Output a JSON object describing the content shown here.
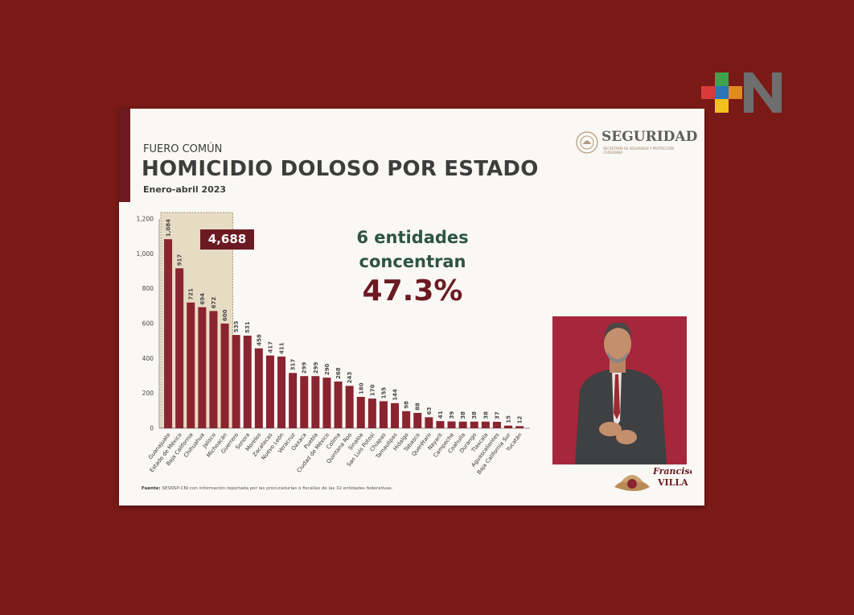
{
  "brand_logo": "+N",
  "slide": {
    "eyebrow": "FUERO COMÚN",
    "title": "HOMICIDIO DOLOSO POR ESTADO",
    "subtitle": "Enero-abril 2023",
    "seguridad": "SEGURIDAD",
    "seguridad_sub": "SECRETARÍA DE SEGURIDAD Y PROTECCIÓN CIUDADANA",
    "total_box": "4,688",
    "headline_1": "6 entidades",
    "headline_2": "concentran",
    "headline_pct": "47.3%",
    "source_label": "Fuente:",
    "source_text": "SESNSP-CNI con información reportada por las procuradurías o fiscalías de las 32 entidades federativas.",
    "francisco_villa": "Francisco VILLA"
  },
  "colors": {
    "bar": "#8a2430",
    "bar_dark": "#6b1a22",
    "highlight_band": "#e6dbc3",
    "accent_green": "#2f5347",
    "slide_bg": "#faf8f4",
    "page_bg": "#7a1a16"
  },
  "chart_data": {
    "type": "bar",
    "categories": [
      "Guanajuato",
      "Estado de México",
      "Baja California",
      "Chihuahua",
      "Jalisco",
      "Michoacán",
      "Guerrero",
      "Sonora",
      "Morelos",
      "Zacatecas",
      "Nuevo León",
      "Veracruz",
      "Oaxaca",
      "Puebla",
      "Ciudad de México",
      "Colima",
      "Quintana Roo",
      "Sinaloa",
      "San Luis Potosí",
      "Chiapas",
      "Tamaulipas",
      "Hidalgo",
      "Tabasco",
      "Querétaro",
      "Nayarit",
      "Campeche",
      "Coahuila",
      "Durango",
      "Tlaxcala",
      "Aguascalientes",
      "Baja California Sur",
      "Yucatán"
    ],
    "values": [
      1084,
      917,
      721,
      694,
      672,
      600,
      535,
      531,
      458,
      417,
      411,
      317,
      299,
      299,
      290,
      268,
      243,
      180,
      170,
      155,
      144,
      98,
      88,
      63,
      41,
      39,
      38,
      38,
      38,
      37,
      15,
      12
    ],
    "value_labels": [
      "1,084",
      "917",
      "721",
      "694",
      "672",
      "600",
      "535",
      "531",
      "458",
      "417",
      "411",
      "317",
      "299",
      "299",
      "290",
      "268",
      "243",
      "180",
      "170",
      "155",
      "144",
      "98",
      "88",
      "63",
      "41",
      "39",
      "38",
      "38",
      "38",
      "37",
      "15",
      "12"
    ],
    "yticks": [
      0,
      200,
      400,
      600,
      800,
      1000,
      1200
    ],
    "ytick_labels": [
      "0",
      "200",
      "400",
      "600",
      "800",
      "1,000",
      "1,200"
    ],
    "ylim": [
      0,
      1200
    ],
    "highlighted_count": 6,
    "highlight_total": "4,688",
    "grid": false,
    "legend": "none",
    "title": "HOMICIDIO DOLOSO POR ESTADO",
    "xlabel": "",
    "ylabel": ""
  }
}
